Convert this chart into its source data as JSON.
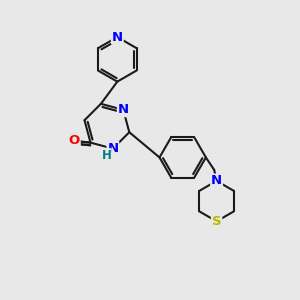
{
  "background_color": "#e8e8e8",
  "bond_color": "#1a1a1a",
  "atom_colors": {
    "N": "#0000ff",
    "O": "#ff0000",
    "S": "#b8b800",
    "H": "#008080"
  },
  "figsize": [
    3.0,
    3.0
  ],
  "dpi": 100
}
